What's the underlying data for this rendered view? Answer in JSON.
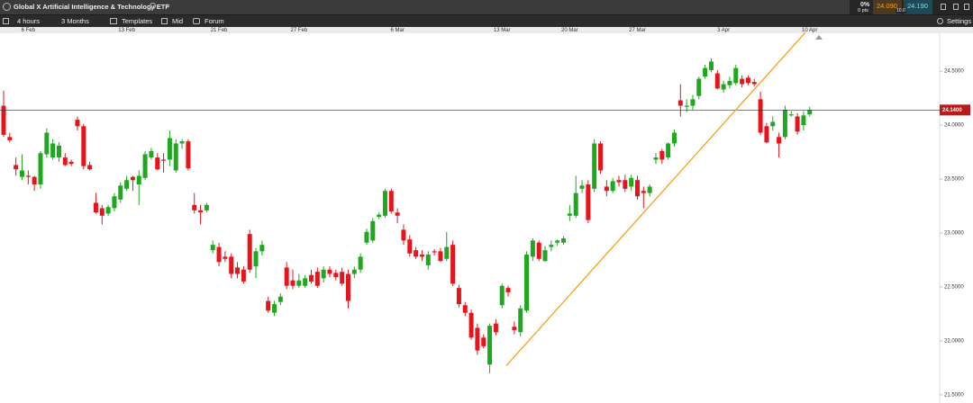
{
  "toolbar": {
    "tab_title": "Global X Artificial Intelligence & Technology ETF",
    "new_tab": "+",
    "interval": "4 hours",
    "range": "3 Months",
    "templates": "Templates",
    "price_type": "Mid",
    "forum": "Forum",
    "settings": "Settings"
  },
  "quote": {
    "change_pct": "0%",
    "change_pts": "0 pts",
    "sell": "24.090",
    "buy": "24.190",
    "spread": "10.0"
  },
  "chart_data": {
    "type": "candlestick",
    "categories": [
      null,
      null,
      null,
      null,
      "6 Feb",
      null,
      null,
      null,
      null,
      null,
      null,
      null,
      null,
      null,
      null,
      null,
      null,
      null,
      null,
      null,
      "13 Feb",
      null,
      null,
      null,
      null,
      null,
      null,
      null,
      null,
      null,
      null,
      null,
      null,
      null,
      null,
      "21 Feb",
      null,
      null,
      null,
      null,
      null,
      null,
      null,
      null,
      null,
      null,
      null,
      null,
      "27 Feb",
      null,
      null,
      null,
      null,
      null,
      null,
      null,
      null,
      null,
      null,
      null,
      null,
      null,
      null,
      null,
      "6 Mar",
      null,
      null,
      null,
      null,
      null,
      null,
      null,
      null,
      null,
      null,
      null,
      null,
      null,
      null,
      null,
      null,
      "13 Mar",
      null,
      null,
      null,
      null,
      null,
      null,
      null,
      null,
      null,
      null,
      "20 Mar",
      null,
      null,
      null,
      null,
      null,
      null,
      null,
      null,
      null,
      null,
      "27 Mar",
      null,
      null,
      null,
      null,
      null,
      null,
      null,
      null,
      null,
      null,
      null,
      null,
      null,
      "3 Apr",
      null,
      null,
      null,
      null,
      null,
      null,
      null,
      null,
      null,
      null,
      null,
      null,
      null,
      "10 Apr"
    ],
    "open": [
      24.18,
      23.89,
      23.63,
      23.52,
      23.53,
      23.52,
      23.45,
      23.73,
      23.7,
      23.7,
      23.7,
      23.66,
      24.05,
      23.99,
      23.63,
      23.28,
      23.23,
      23.18,
      23.23,
      23.31,
      23.41,
      23.52,
      23.45,
      23.51,
      23.7,
      23.7,
      23.68,
      23.68,
      23.58,
      23.83,
      23.85,
      23.26,
      23.21,
      23.21,
      22.84,
      22.87,
      22.78,
      22.78,
      22.68,
      22.66,
      22.99,
      22.69,
      22.83,
      22.37,
      22.26,
      22.36,
      22.68,
      22.56,
      22.51,
      22.51,
      22.61,
      22.64,
      22.58,
      22.66,
      22.63,
      22.64,
      22.62,
      22.62,
      22.66,
      22.91,
      22.93,
      23.15,
      23.16,
      23.39,
      23.19,
      23.03,
      22.94,
      22.84,
      22.8,
      22.7,
      22.83,
      22.83,
      22.76,
      22.89,
      22.49,
      22.33,
      22.26,
      22.12,
      22.03,
      21.78,
      22.16,
      22.33,
      22.49,
      22.13,
      22.08,
      22.28,
      22.78,
      22.91,
      22.74,
      22.87,
      22.91,
      22.91,
      23.16,
      23.16,
      23.41,
      23.45,
      23.41,
      23.83,
      23.43,
      23.39,
      23.49,
      23.49,
      23.43,
      23.49,
      23.39,
      23.37,
      23.68,
      23.76,
      23.7,
      23.83,
      24.23,
      24.17,
      24.18,
      24.27,
      24.45,
      24.51,
      24.48,
      24.33,
      24.37,
      24.39,
      24.43,
      24.44,
      24.4,
      24.24,
      23.99,
      23.99,
      23.89,
      23.89,
      24.09,
      24.08,
      24.0,
      24.1
    ],
    "high": [
      24.32,
      23.93,
      23.7,
      23.73,
      23.58,
      23.53,
      23.76,
      23.97,
      23.87,
      23.84,
      23.74,
      23.68,
      24.08,
      24.01,
      23.66,
      23.37,
      23.26,
      23.26,
      23.37,
      23.47,
      23.53,
      23.53,
      23.58,
      23.76,
      23.79,
      23.74,
      23.74,
      23.95,
      23.87,
      23.87,
      23.87,
      23.37,
      23.26,
      23.28,
      22.93,
      22.91,
      22.83,
      22.81,
      22.73,
      22.69,
      23.03,
      22.86,
      22.93,
      22.41,
      22.37,
      22.44,
      22.73,
      22.66,
      22.62,
      22.61,
      22.66,
      22.68,
      22.69,
      22.69,
      22.66,
      22.68,
      22.66,
      22.69,
      22.81,
      23.04,
      23.14,
      23.19,
      23.41,
      23.41,
      23.23,
      23.08,
      22.98,
      22.87,
      22.84,
      22.83,
      22.85,
      22.86,
      23.01,
      22.93,
      22.52,
      22.36,
      22.29,
      22.16,
      22.06,
      22.16,
      22.2,
      22.53,
      22.51,
      22.18,
      22.33,
      22.83,
      22.95,
      22.93,
      22.88,
      22.93,
      22.94,
      22.97,
      23.26,
      23.53,
      23.49,
      23.49,
      23.87,
      23.85,
      23.49,
      23.51,
      23.53,
      23.54,
      23.54,
      23.53,
      23.43,
      23.45,
      23.74,
      23.78,
      23.84,
      23.96,
      24.38,
      24.24,
      24.28,
      24.45,
      24.56,
      24.62,
      24.51,
      24.41,
      24.45,
      24.56,
      24.46,
      24.46,
      24.43,
      24.31,
      24.02,
      24.08,
      23.93,
      24.18,
      24.13,
      24.11,
      24.13,
      24.17
    ],
    "low": [
      23.89,
      23.84,
      23.53,
      23.49,
      23.45,
      23.39,
      23.41,
      23.7,
      23.68,
      23.66,
      23.62,
      23.62,
      23.95,
      23.59,
      23.58,
      23.18,
      23.08,
      23.16,
      23.2,
      23.28,
      23.39,
      23.39,
      23.26,
      23.49,
      23.68,
      23.58,
      23.56,
      23.62,
      23.56,
      23.78,
      23.58,
      23.18,
      23.08,
      23.19,
      22.81,
      22.69,
      22.73,
      22.58,
      22.58,
      22.53,
      22.63,
      22.58,
      22.79,
      22.26,
      22.23,
      22.33,
      22.48,
      22.48,
      22.49,
      22.49,
      22.53,
      22.49,
      22.54,
      22.59,
      22.56,
      22.51,
      22.3,
      22.58,
      22.63,
      22.89,
      22.91,
      23.13,
      23.14,
      23.18,
      23.09,
      22.89,
      22.78,
      22.76,
      22.74,
      22.66,
      22.79,
      22.73,
      22.74,
      22.51,
      22.31,
      22.23,
      22.01,
      21.87,
      21.93,
      21.7,
      22.05,
      22.3,
      22.41,
      22.06,
      22.04,
      22.26,
      22.74,
      22.74,
      22.73,
      22.83,
      22.88,
      22.89,
      23.11,
      23.14,
      23.37,
      23.09,
      23.38,
      23.55,
      23.34,
      23.37,
      23.43,
      23.38,
      23.39,
      23.31,
      23.23,
      23.34,
      23.64,
      23.64,
      23.68,
      23.8,
      24.08,
      24.12,
      24.14,
      24.24,
      24.43,
      24.49,
      24.33,
      24.3,
      24.34,
      24.37,
      24.35,
      24.37,
      24.36,
      23.91,
      23.83,
      23.95,
      23.7,
      23.87,
      24.08,
      23.91,
      23.95,
      24.08
    ],
    "close": [
      23.91,
      23.86,
      23.59,
      23.58,
      23.52,
      23.45,
      23.74,
      23.93,
      23.83,
      23.81,
      23.63,
      23.64,
      23.99,
      23.62,
      23.59,
      23.19,
      23.16,
      23.24,
      23.34,
      23.44,
      23.49,
      23.49,
      23.53,
      23.73,
      23.76,
      23.59,
      23.67,
      23.88,
      23.83,
      23.85,
      23.6,
      23.21,
      23.19,
      23.26,
      22.89,
      22.73,
      22.76,
      22.62,
      22.62,
      22.55,
      22.66,
      22.83,
      22.89,
      22.28,
      22.34,
      22.41,
      22.51,
      22.51,
      22.56,
      22.58,
      22.55,
      22.51,
      22.66,
      22.62,
      22.59,
      22.53,
      22.37,
      22.66,
      22.78,
      23.01,
      23.11,
      23.17,
      23.39,
      23.2,
      23.16,
      22.93,
      22.81,
      22.78,
      22.78,
      22.8,
      22.82,
      22.74,
      22.87,
      22.53,
      22.34,
      22.26,
      22.03,
      21.91,
      21.95,
      22.14,
      22.08,
      22.51,
      22.45,
      22.1,
      22.3,
      22.8,
      22.93,
      22.76,
      22.84,
      22.89,
      22.93,
      22.95,
      23.18,
      23.37,
      23.44,
      23.12,
      23.83,
      23.58,
      23.39,
      23.48,
      23.47,
      23.41,
      23.51,
      23.34,
      23.37,
      23.43,
      23.7,
      23.68,
      23.83,
      23.93,
      24.18,
      24.18,
      24.24,
      24.43,
      24.53,
      24.59,
      24.34,
      24.38,
      24.41,
      24.53,
      24.38,
      24.39,
      24.38,
      23.93,
      23.84,
      24.03,
      23.83,
      24.14,
      24.1,
      23.94,
      24.09,
      24.14
    ],
    "up_color": "#1fa81f",
    "down_color": "#e8141c",
    "ylim": [
      21.44,
      24.86
    ],
    "yticks": [
      {
        "value": 24.5,
        "label": "24.5000"
      },
      {
        "value": 24.0,
        "label": "24.0000"
      },
      {
        "value": 23.5,
        "label": "23.5000"
      },
      {
        "value": 23.0,
        "label": "23.0000"
      },
      {
        "value": 22.5,
        "label": "22.5000"
      },
      {
        "value": 22.0,
        "label": "22.0000"
      },
      {
        "value": 21.5,
        "label": "21.5000"
      }
    ],
    "last_price": {
      "value": 24.14,
      "label": "24.1400",
      "color": "#b71c1c"
    },
    "trend_line": {
      "color": "#f5a623",
      "values": [
        21.77,
        24.86
      ]
    }
  }
}
